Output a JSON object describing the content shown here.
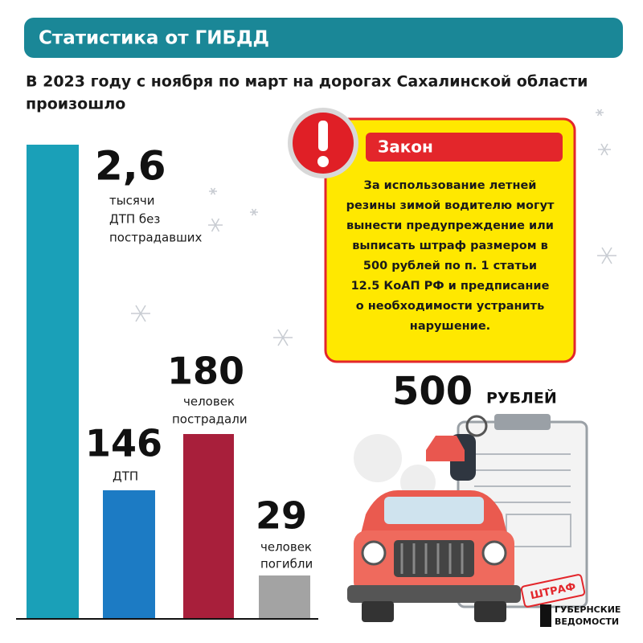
{
  "header": {
    "title": "Статистика от ГИБДД"
  },
  "subtitle": [
    "В 2023 году с ноября по март на дорогах Сахалинской области",
    "произошло"
  ],
  "stats": [
    {
      "value": "2,6",
      "caption": [
        "тысячи",
        "ДТП без",
        "пострадавших"
      ]
    },
    {
      "value": "146",
      "caption": [
        "ДТП"
      ]
    },
    {
      "value": "180",
      "caption": [
        "человек",
        "пострадали"
      ]
    },
    {
      "value": "29",
      "caption": [
        "человек",
        "погибли"
      ]
    }
  ],
  "law": {
    "title": "Закон",
    "lines": [
      "За использование летней",
      "резины зимой водителю могут",
      "вынести предупреждение или",
      "выписать штраф размером в",
      "500 рублей по п. 1 статьи",
      "12.5 КоАП РФ и предписание",
      "о необходимости устранить",
      "нарушение."
    ]
  },
  "fine": {
    "amount": "500",
    "unit": "РУБЛЕЙ",
    "stamp": "ШТРАФ"
  },
  "logo": [
    "ГУБЕРНСКИЕ",
    "ВЕДОМОСТИ"
  ]
}
